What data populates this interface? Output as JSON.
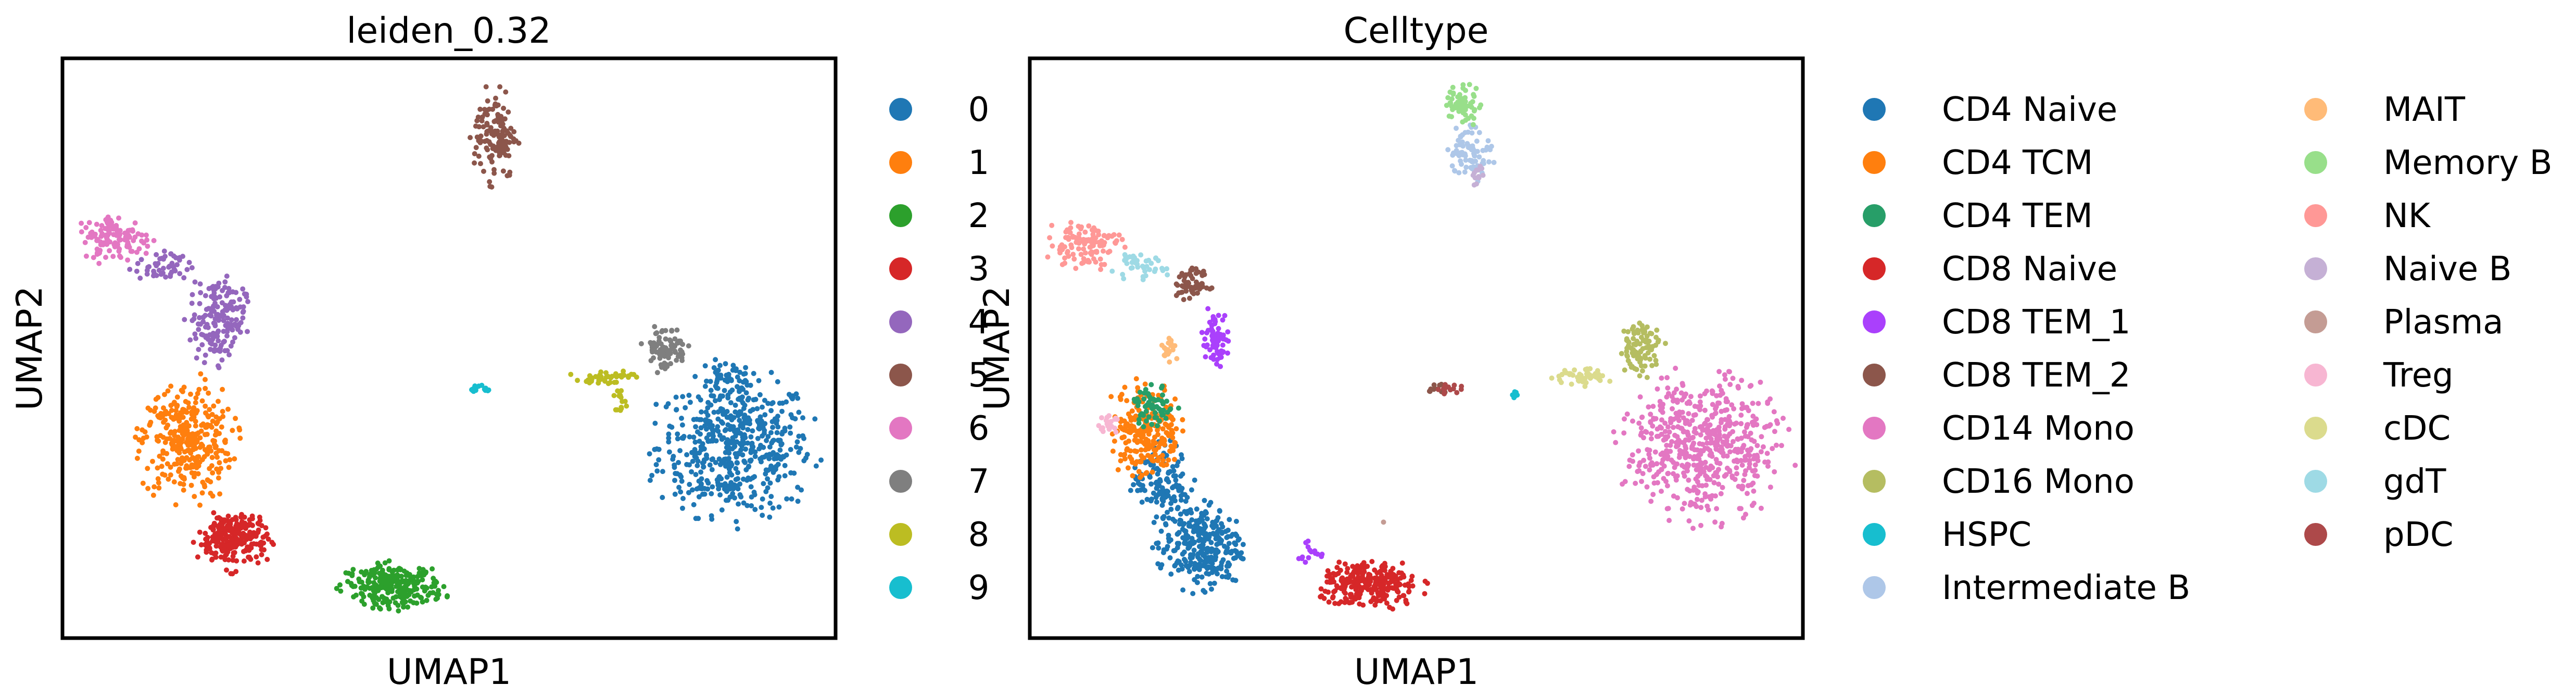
{
  "chart_data": [
    {
      "type": "scatter",
      "title": "leiden_0.32",
      "xlabel": "UMAP1",
      "ylabel": "UMAP2",
      "xticks": [],
      "yticks": [],
      "grid": false,
      "legend_position": "outside-right",
      "categories": [
        "0",
        "1",
        "2",
        "3",
        "4",
        "5",
        "6",
        "7",
        "8",
        "9"
      ],
      "colors": [
        "#1f77b4",
        "#ff7f0e",
        "#2ca02c",
        "#d62728",
        "#9467bd",
        "#8c564b",
        "#e377c2",
        "#7f7f7f",
        "#bcbd22",
        "#17becf"
      ],
      "clusters": [
        {
          "label": "0",
          "blobs": [
            {
              "cx": 0.87,
              "cy": 0.33,
              "rx": 0.11,
              "ry": 0.13,
              "n": 520
            },
            {
              "cx": 0.86,
              "cy": 0.45,
              "rx": 0.04,
              "ry": 0.03,
              "n": 40
            }
          ]
        },
        {
          "label": "1",
          "blobs": [
            {
              "cx": 0.16,
              "cy": 0.34,
              "rx": 0.065,
              "ry": 0.11,
              "n": 330
            }
          ]
        },
        {
          "label": "2",
          "blobs": [
            {
              "cx": 0.43,
              "cy": 0.09,
              "rx": 0.07,
              "ry": 0.04,
              "n": 260
            }
          ]
        },
        {
          "label": "3",
          "blobs": [
            {
              "cx": 0.22,
              "cy": 0.17,
              "rx": 0.05,
              "ry": 0.055,
              "n": 230
            }
          ]
        },
        {
          "label": "4",
          "blobs": [
            {
              "cx": 0.2,
              "cy": 0.55,
              "rx": 0.04,
              "ry": 0.08,
              "n": 170
            },
            {
              "cx": 0.13,
              "cy": 0.64,
              "rx": 0.04,
              "ry": 0.03,
              "n": 50
            }
          ]
        },
        {
          "label": "5",
          "blobs": [
            {
              "cx": 0.56,
              "cy": 0.87,
              "rx": 0.03,
              "ry": 0.085,
              "n": 130
            }
          ]
        },
        {
          "label": "6",
          "blobs": [
            {
              "cx": 0.07,
              "cy": 0.69,
              "rx": 0.05,
              "ry": 0.045,
              "n": 120
            }
          ]
        },
        {
          "label": "7",
          "blobs": [
            {
              "cx": 0.78,
              "cy": 0.5,
              "rx": 0.03,
              "ry": 0.045,
              "n": 80
            }
          ]
        },
        {
          "label": "8",
          "blobs": [
            {
              "cx": 0.7,
              "cy": 0.45,
              "rx": 0.045,
              "ry": 0.015,
              "n": 45
            },
            {
              "cx": 0.72,
              "cy": 0.41,
              "rx": 0.01,
              "ry": 0.02,
              "n": 15
            }
          ]
        },
        {
          "label": "9",
          "blobs": [
            {
              "cx": 0.54,
              "cy": 0.43,
              "rx": 0.02,
              "ry": 0.008,
              "n": 14
            }
          ]
        }
      ]
    },
    {
      "type": "scatter",
      "title": "Celltype",
      "xlabel": "UMAP1",
      "ylabel": "UMAP2",
      "xticks": [],
      "yticks": [],
      "grid": false,
      "legend_position": "outside-right",
      "categories": [
        "CD4 Naive",
        "CD4 TCM",
        "CD4 TEM",
        "CD8 Naive",
        "CD8 TEM_1",
        "CD8 TEM_2",
        "CD14 Mono",
        "CD16 Mono",
        "HSPC",
        "Intermediate B",
        "MAIT",
        "Memory B",
        "NK",
        "Naive B",
        "Plasma",
        "Treg",
        "cDC",
        "gdT",
        "pDC"
      ],
      "colors": [
        "#1f77b4",
        "#ff7f0e",
        "#279e68",
        "#d62728",
        "#aa40fc",
        "#8c564b",
        "#e377c2",
        "#b5bd61",
        "#17becf",
        "#aec7e8",
        "#ffbb78",
        "#98df8a",
        "#ff9896",
        "#c5b0d5",
        "#c49c94",
        "#f7b6d2",
        "#dbdb8d",
        "#9edae5",
        "#ad494a"
      ],
      "clusters": [
        {
          "label": "CD4 Naive",
          "blobs": [
            {
              "cx": 0.22,
              "cy": 0.16,
              "rx": 0.06,
              "ry": 0.08,
              "n": 300
            },
            {
              "cx": 0.17,
              "cy": 0.27,
              "rx": 0.04,
              "ry": 0.07,
              "n": 120
            }
          ]
        },
        {
          "label": "CD4 TCM",
          "blobs": [
            {
              "cx": 0.15,
              "cy": 0.36,
              "rx": 0.05,
              "ry": 0.09,
              "n": 220
            }
          ]
        },
        {
          "label": "CD4 TEM",
          "blobs": [
            {
              "cx": 0.16,
              "cy": 0.4,
              "rx": 0.03,
              "ry": 0.04,
              "n": 60
            }
          ]
        },
        {
          "label": "CD8 Naive",
          "blobs": [
            {
              "cx": 0.44,
              "cy": 0.09,
              "rx": 0.07,
              "ry": 0.045,
              "n": 260
            }
          ]
        },
        {
          "label": "CD8 TEM_1",
          "blobs": [
            {
              "cx": 0.24,
              "cy": 0.52,
              "rx": 0.02,
              "ry": 0.05,
              "n": 70
            },
            {
              "cx": 0.36,
              "cy": 0.15,
              "rx": 0.02,
              "ry": 0.02,
              "n": 15
            }
          ]
        },
        {
          "label": "CD8 TEM_2",
          "blobs": [
            {
              "cx": 0.21,
              "cy": 0.61,
              "rx": 0.025,
              "ry": 0.03,
              "n": 60
            },
            {
              "cx": 0.53,
              "cy": 0.43,
              "rx": 0.02,
              "ry": 0.01,
              "n": 14
            }
          ]
        },
        {
          "label": "CD14 Mono",
          "blobs": [
            {
              "cx": 0.87,
              "cy": 0.33,
              "rx": 0.11,
              "ry": 0.13,
              "n": 560
            }
          ]
        },
        {
          "label": "CD16 Mono",
          "blobs": [
            {
              "cx": 0.79,
              "cy": 0.5,
              "rx": 0.03,
              "ry": 0.05,
              "n": 90
            }
          ]
        },
        {
          "label": "HSPC",
          "blobs": [
            {
              "cx": 0.63,
              "cy": 0.42,
              "rx": 0.01,
              "ry": 0.006,
              "n": 6
            }
          ]
        },
        {
          "label": "Intermediate B",
          "blobs": [
            {
              "cx": 0.57,
              "cy": 0.84,
              "rx": 0.03,
              "ry": 0.05,
              "n": 80
            }
          ]
        },
        {
          "label": "MAIT",
          "blobs": [
            {
              "cx": 0.18,
              "cy": 0.5,
              "rx": 0.012,
              "ry": 0.03,
              "n": 20
            }
          ]
        },
        {
          "label": "Memory B",
          "blobs": [
            {
              "cx": 0.56,
              "cy": 0.92,
              "rx": 0.025,
              "ry": 0.04,
              "n": 60
            }
          ]
        },
        {
          "label": "NK",
          "blobs": [
            {
              "cx": 0.07,
              "cy": 0.68,
              "rx": 0.05,
              "ry": 0.045,
              "n": 110
            }
          ]
        },
        {
          "label": "Naive B",
          "blobs": [
            {
              "cx": 0.58,
              "cy": 0.8,
              "rx": 0.015,
              "ry": 0.02,
              "n": 12
            }
          ]
        },
        {
          "label": "Plasma",
          "blobs": [
            {
              "cx": 0.46,
              "cy": 0.2,
              "rx": 0.005,
              "ry": 0.005,
              "n": 1
            }
          ]
        },
        {
          "label": "Treg",
          "blobs": [
            {
              "cx": 0.1,
              "cy": 0.37,
              "rx": 0.02,
              "ry": 0.02,
              "n": 20
            }
          ]
        },
        {
          "label": "cDC",
          "blobs": [
            {
              "cx": 0.71,
              "cy": 0.45,
              "rx": 0.045,
              "ry": 0.015,
              "n": 50
            }
          ]
        },
        {
          "label": "gdT",
          "blobs": [
            {
              "cx": 0.14,
              "cy": 0.64,
              "rx": 0.04,
              "ry": 0.025,
              "n": 40
            }
          ]
        },
        {
          "label": "pDC",
          "blobs": [
            {
              "cx": 0.54,
              "cy": 0.43,
              "rx": 0.02,
              "ry": 0.008,
              "n": 14
            }
          ]
        }
      ]
    }
  ]
}
